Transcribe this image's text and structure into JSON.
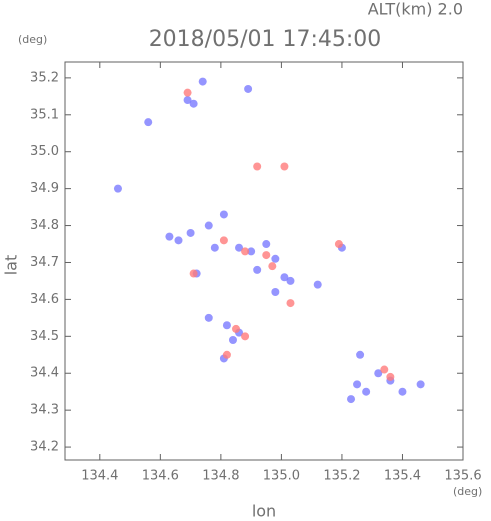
{
  "chart_data": {
    "type": "scatter",
    "title": "2018/05/01 17:45:00",
    "subtitle": "ALT(km) 2.0",
    "x_label": "lon",
    "y_label": "lat",
    "x_unit": "(deg)",
    "y_unit": "(deg)",
    "xlim": [
      134.285,
      135.6
    ],
    "ylim": [
      34.165,
      35.243
    ],
    "xticks": [
      134.4,
      134.6,
      134.8,
      {
        "value": 135,
        "label": "135.0"
      },
      135.2,
      135.4,
      135.6
    ],
    "yticks": [
      34.2,
      34.3,
      34.4,
      34.5,
      34.6,
      34.7,
      34.8,
      34.9,
      {
        "value": 35,
        "label": "35.0"
      },
      35.1,
      35.2
    ],
    "series": [
      {
        "color": "#7b7bff",
        "x": [
          134.69,
          134.71,
          134.74,
          134.56,
          134.63,
          134.66,
          134.7,
          134.76,
          134.81,
          134.78,
          134.86,
          134.9,
          134.95,
          134.98,
          134.92,
          135.01,
          134.98,
          135.03,
          134.72,
          134.76,
          134.82,
          134.86,
          134.84,
          134.81,
          135.2,
          135.25,
          135.28,
          135.32,
          135.36,
          135.4,
          135.46,
          135.23,
          135.26,
          134.46,
          135.12,
          134.89
        ],
        "y": [
          35.14,
          35.13,
          35.19,
          35.08,
          34.77,
          34.76,
          34.78,
          34.8,
          34.83,
          34.74,
          34.74,
          34.73,
          34.75,
          34.71,
          34.68,
          34.66,
          34.62,
          34.65,
          34.67,
          34.55,
          34.53,
          34.51,
          34.49,
          34.44,
          34.74,
          34.37,
          34.35,
          34.4,
          34.38,
          34.35,
          34.37,
          34.33,
          34.45,
          34.9,
          34.64,
          35.17
        ]
      },
      {
        "color": "#ff7b7b",
        "x": [
          134.69,
          134.92,
          135.01,
          134.81,
          134.88,
          134.95,
          134.97,
          134.85,
          134.88,
          135.19,
          135.34,
          135.36,
          134.71,
          134.82,
          135.03
        ],
        "y": [
          35.16,
          34.96,
          34.96,
          34.76,
          34.73,
          34.72,
          34.69,
          34.52,
          34.5,
          34.75,
          34.41,
          34.39,
          34.67,
          34.45,
          34.59
        ]
      }
    ]
  }
}
